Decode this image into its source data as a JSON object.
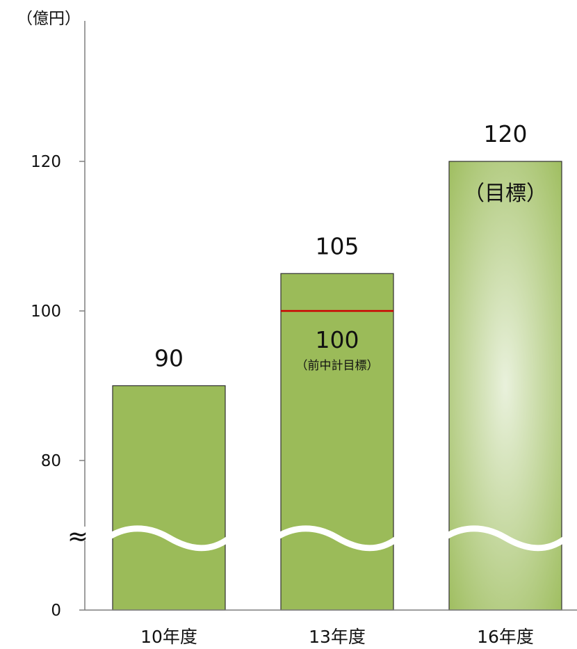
{
  "chart_data": {
    "type": "bar",
    "unit_label": "（億円）",
    "categories": [
      "10年度",
      "13年度",
      "16年度"
    ],
    "values": [
      90,
      105,
      120
    ],
    "value_labels": [
      "90",
      "105",
      "120"
    ],
    "bar_notes": [
      "",
      "",
      "（目標）"
    ],
    "y_ticks": [
      "0",
      "80",
      "100",
      "120"
    ],
    "ylim": [
      0,
      120
    ],
    "axis_break": true,
    "axis_break_symbol": "≈",
    "reference_line": {
      "category": "13年度",
      "value": 100,
      "label": "100",
      "note": "（前中計目標）",
      "color": "#cc0000"
    },
    "colors": {
      "bar_fill": "#9bbb59",
      "bar_stroke": "#2f2f2f",
      "target_bar_light": "#e9f1dc",
      "axis": "#7f7f7f"
    },
    "legend": "none",
    "grid": false
  }
}
